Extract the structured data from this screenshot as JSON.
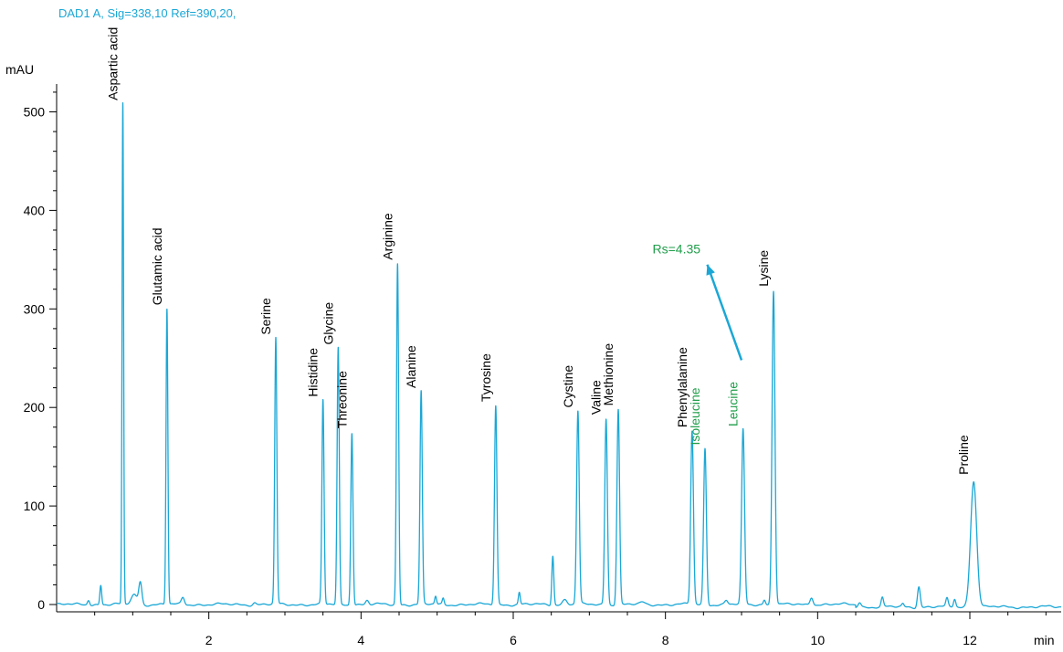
{
  "header": {
    "signal": "DAD1 A, Sig=338,10 Ref=390,20,"
  },
  "chart_data": {
    "type": "line",
    "xlabel": "min",
    "ylabel": "mAU",
    "xlim": [
      0,
      13.2
    ],
    "ylim": [
      -6,
      530
    ],
    "x_ticks": [
      2,
      4,
      6,
      8,
      10,
      12
    ],
    "y_ticks": [
      0,
      100,
      200,
      300,
      400,
      500
    ],
    "grid": false,
    "colors": {
      "trace": "#1aa7d6",
      "highlight": "#1f9e4a"
    },
    "peaks": [
      {
        "name": "Aspartic acid",
        "rt": 0.87,
        "height": 508,
        "width": 0.01
      },
      {
        "name": "Glutamic acid",
        "rt": 1.45,
        "height": 300,
        "width": 0.012
      },
      {
        "name": "Serine",
        "rt": 2.88,
        "height": 270,
        "width": 0.014
      },
      {
        "name": "Histidine",
        "rt": 3.5,
        "height": 207,
        "width": 0.014
      },
      {
        "name": "Glycine",
        "rt": 3.7,
        "height": 260,
        "width": 0.014
      },
      {
        "name": "Threonine",
        "rt": 3.88,
        "height": 175,
        "width": 0.014
      },
      {
        "name": "Arginine",
        "rt": 4.48,
        "height": 346,
        "width": 0.014
      },
      {
        "name": "Alanine",
        "rt": 4.79,
        "height": 216,
        "width": 0.015
      },
      {
        "name": "Tyrosine",
        "rt": 5.77,
        "height": 202,
        "width": 0.016
      },
      {
        "name": "Cystine",
        "rt": 6.85,
        "height": 196,
        "width": 0.017
      },
      {
        "name": "Valine",
        "rt": 7.22,
        "height": 189,
        "width": 0.017
      },
      {
        "name": "Methionine",
        "rt": 7.38,
        "height": 198,
        "width": 0.017
      },
      {
        "name": "Phenylalanine",
        "rt": 8.35,
        "height": 176,
        "width": 0.018
      },
      {
        "name": "Isoleucine",
        "rt": 8.52,
        "height": 158,
        "width": 0.018,
        "highlight": true
      },
      {
        "name": "Leucine",
        "rt": 9.02,
        "height": 177,
        "width": 0.019,
        "highlight": true
      },
      {
        "name": "Lysine",
        "rt": 9.42,
        "height": 319,
        "width": 0.019
      },
      {
        "name": "Proline",
        "rt": 12.05,
        "height": 128,
        "width": 0.04
      }
    ],
    "minor_peaks": [
      {
        "rt": 0.42,
        "height": 5,
        "width": 0.015
      },
      {
        "rt": 0.58,
        "height": 20,
        "width": 0.012
      },
      {
        "rt": 1.02,
        "height": 10,
        "width": 0.04
      },
      {
        "rt": 1.1,
        "height": 22,
        "width": 0.02
      },
      {
        "rt": 1.66,
        "height": 7,
        "width": 0.02
      },
      {
        "rt": 2.6,
        "height": 2,
        "width": 0.02
      },
      {
        "rt": 4.08,
        "height": 4,
        "width": 0.02
      },
      {
        "rt": 4.98,
        "height": 8,
        "width": 0.012
      },
      {
        "rt": 5.08,
        "height": 6,
        "width": 0.012
      },
      {
        "rt": 6.08,
        "height": 12,
        "width": 0.012
      },
      {
        "rt": 6.52,
        "height": 50,
        "width": 0.013
      },
      {
        "rt": 6.68,
        "height": 5,
        "width": 0.03
      },
      {
        "rt": 7.7,
        "height": 2,
        "width": 0.03
      },
      {
        "rt": 8.8,
        "height": 4,
        "width": 0.02
      },
      {
        "rt": 9.3,
        "height": 5,
        "width": 0.015
      },
      {
        "rt": 9.92,
        "height": 8,
        "width": 0.02
      },
      {
        "rt": 10.55,
        "height": 5,
        "width": 0.02
      },
      {
        "rt": 10.85,
        "height": 9,
        "width": 0.015
      },
      {
        "rt": 11.12,
        "height": 3,
        "width": 0.015
      },
      {
        "rt": 11.33,
        "height": 21,
        "width": 0.018
      },
      {
        "rt": 11.7,
        "height": 8,
        "width": 0.015
      },
      {
        "rt": 11.8,
        "height": 8,
        "width": 0.015
      }
    ],
    "annotation": {
      "text": "Rs=4.35",
      "arrow_from_x": 9.0,
      "arrow_from_y": 248,
      "arrow_to_x": 8.55,
      "arrow_to_y": 345
    }
  }
}
